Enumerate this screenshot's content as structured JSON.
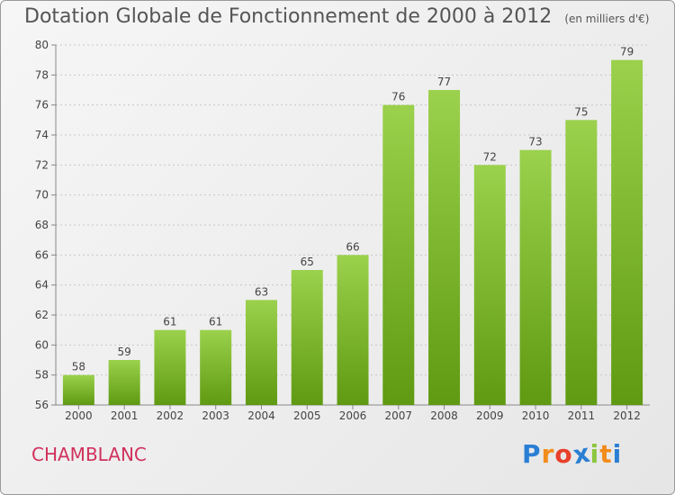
{
  "header": {
    "title": "Dotation Globale de Fonctionnement de 2000 à 2012",
    "subtitle": "(en milliers d'€)"
  },
  "footer": {
    "commune": "CHAMBLANC",
    "logo": "Proxiti"
  },
  "colors": {
    "bar_top": "#9bd14c",
    "bar_bottom": "#5f9a12",
    "title": "#555555",
    "commune": "#d0315c"
  },
  "chart_data": {
    "type": "bar",
    "title": "Dotation Globale de Fonctionnement de 2000 à 2012",
    "subtitle": "(en milliers d'€)",
    "categories": [
      "2000",
      "2001",
      "2002",
      "2003",
      "2004",
      "2005",
      "2006",
      "2007",
      "2008",
      "2009",
      "2010",
      "2011",
      "2012"
    ],
    "values": [
      58,
      59,
      61,
      61,
      63,
      65,
      66,
      76,
      77,
      72,
      73,
      75,
      79
    ],
    "ylim": [
      56,
      80
    ],
    "yticks": [
      56,
      58,
      60,
      62,
      64,
      66,
      68,
      70,
      72,
      74,
      76,
      78,
      80
    ],
    "grid": true
  }
}
